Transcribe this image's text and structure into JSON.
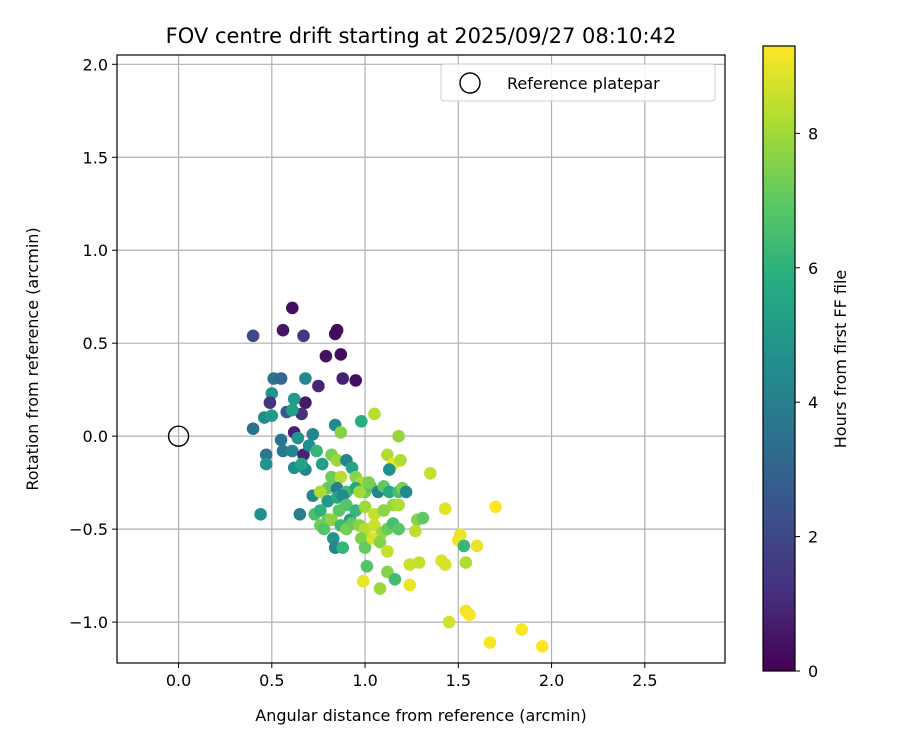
{
  "chart_data": {
    "type": "scatter",
    "title": "FOV centre drift starting at 2025/09/27 08:10:42",
    "xlabel": "Angular distance from reference (arcmin)",
    "ylabel": "Rotation from reference (arcmin)",
    "xlim": [
      -0.33,
      2.93
    ],
    "ylim": [
      -1.22,
      2.05
    ],
    "xticks": [
      0.0,
      0.5,
      1.0,
      1.5,
      2.0,
      2.5
    ],
    "xtick_labels": [
      "0.0",
      "0.5",
      "1.0",
      "1.5",
      "2.0",
      "2.5"
    ],
    "yticks": [
      -1.0,
      -0.5,
      0.0,
      0.5,
      1.0,
      1.5,
      2.0
    ],
    "ytick_labels": [
      "−1.0",
      "−0.5",
      "0.0",
      "0.5",
      "1.0",
      "1.5",
      "2.0"
    ],
    "grid": true,
    "legend": {
      "position": "top-right",
      "entries": [
        "Reference platepar"
      ]
    },
    "reference_point": {
      "name": "Reference platepar",
      "x": 0.0,
      "y": 0.0
    },
    "colorbar": {
      "label": "Hours from first FF file",
      "colormap": "viridis",
      "range": [
        0,
        9.3
      ],
      "ticks": [
        0,
        2,
        4,
        6,
        8
      ],
      "tick_labels": [
        "0",
        "2",
        "4",
        "6",
        "8"
      ]
    },
    "series": [
      {
        "name": "FOV centre drift",
        "points": [
          {
            "x": 0.61,
            "y": 0.69,
            "h": 0.3
          },
          {
            "x": 0.56,
            "y": 0.57,
            "h": 0.5
          },
          {
            "x": 0.67,
            "y": 0.54,
            "h": 1.5
          },
          {
            "x": 0.4,
            "y": 0.54,
            "h": 2.0
          },
          {
            "x": 0.84,
            "y": 0.55,
            "h": 0.3
          },
          {
            "x": 0.85,
            "y": 0.57,
            "h": 0.2
          },
          {
            "x": 0.79,
            "y": 0.43,
            "h": 0.4
          },
          {
            "x": 0.87,
            "y": 0.44,
            "h": 0.3
          },
          {
            "x": 0.75,
            "y": 0.27,
            "h": 0.9
          },
          {
            "x": 0.88,
            "y": 0.31,
            "h": 0.8
          },
          {
            "x": 0.95,
            "y": 0.3,
            "h": 0.3
          },
          {
            "x": 0.51,
            "y": 0.31,
            "h": 3.6
          },
          {
            "x": 0.55,
            "y": 0.31,
            "h": 3.2
          },
          {
            "x": 0.68,
            "y": 0.31,
            "h": 4.3
          },
          {
            "x": 0.5,
            "y": 0.23,
            "h": 4.8
          },
          {
            "x": 0.49,
            "y": 0.18,
            "h": 1.3
          },
          {
            "x": 0.68,
            "y": 0.18,
            "h": 0.6
          },
          {
            "x": 0.58,
            "y": 0.13,
            "h": 2.6
          },
          {
            "x": 0.62,
            "y": 0.2,
            "h": 5.0
          },
          {
            "x": 0.66,
            "y": 0.12,
            "h": 1.2
          },
          {
            "x": 0.61,
            "y": 0.14,
            "h": 5.2
          },
          {
            "x": 0.46,
            "y": 0.1,
            "h": 4.5
          },
          {
            "x": 0.5,
            "y": 0.11,
            "h": 5.0
          },
          {
            "x": 0.4,
            "y": 0.04,
            "h": 3.5
          },
          {
            "x": 0.62,
            "y": 0.02,
            "h": 0.8
          },
          {
            "x": 0.55,
            "y": -0.02,
            "h": 3.6
          },
          {
            "x": 0.64,
            "y": -0.01,
            "h": 4.8
          },
          {
            "x": 0.72,
            "y": 0.01,
            "h": 4.2
          },
          {
            "x": 0.47,
            "y": -0.1,
            "h": 3.7
          },
          {
            "x": 0.56,
            "y": -0.08,
            "h": 3.9
          },
          {
            "x": 0.61,
            "y": -0.08,
            "h": 4.2
          },
          {
            "x": 0.67,
            "y": -0.1,
            "h": 0.9
          },
          {
            "x": 0.7,
            "y": -0.05,
            "h": 4.6
          },
          {
            "x": 0.47,
            "y": -0.15,
            "h": 4.8
          },
          {
            "x": 0.62,
            "y": -0.17,
            "h": 4.6
          },
          {
            "x": 0.68,
            "y": -0.18,
            "h": 4.3
          },
          {
            "x": 0.66,
            "y": -0.15,
            "h": 5.4
          },
          {
            "x": 0.74,
            "y": -0.08,
            "h": 6.2
          },
          {
            "x": 0.77,
            "y": -0.15,
            "h": 5.2
          },
          {
            "x": 0.84,
            "y": 0.06,
            "h": 4.4
          },
          {
            "x": 0.87,
            "y": 0.02,
            "h": 7.6
          },
          {
            "x": 0.98,
            "y": 0.08,
            "h": 5.8
          },
          {
            "x": 1.05,
            "y": 0.12,
            "h": 8.3
          },
          {
            "x": 1.18,
            "y": 0.0,
            "h": 7.8
          },
          {
            "x": 0.44,
            "y": -0.42,
            "h": 4.6
          },
          {
            "x": 0.65,
            "y": -0.42,
            "h": 4.0
          },
          {
            "x": 0.72,
            "y": -0.32,
            "h": 4.4
          },
          {
            "x": 0.76,
            "y": -0.3,
            "h": 5.2
          },
          {
            "x": 0.82,
            "y": -0.1,
            "h": 7.4
          },
          {
            "x": 0.85,
            "y": -0.13,
            "h": 7.9
          },
          {
            "x": 0.9,
            "y": -0.13,
            "h": 4.2
          },
          {
            "x": 0.93,
            "y": -0.17,
            "h": 5.4
          },
          {
            "x": 0.82,
            "y": -0.22,
            "h": 7.2
          },
          {
            "x": 0.87,
            "y": -0.22,
            "h": 8.3
          },
          {
            "x": 0.95,
            "y": -0.22,
            "h": 7.6
          },
          {
            "x": 0.98,
            "y": -0.25,
            "h": 8.2
          },
          {
            "x": 0.8,
            "y": -0.28,
            "h": 7.0
          },
          {
            "x": 0.85,
            "y": -0.28,
            "h": 4.0
          },
          {
            "x": 0.9,
            "y": -0.3,
            "h": 6.4
          },
          {
            "x": 0.95,
            "y": -0.28,
            "h": 5.6
          },
          {
            "x": 1.0,
            "y": -0.3,
            "h": 7.3
          },
          {
            "x": 1.03,
            "y": -0.27,
            "h": 6.8
          },
          {
            "x": 1.07,
            "y": -0.3,
            "h": 4.2
          },
          {
            "x": 1.1,
            "y": -0.27,
            "h": 7.0
          },
          {
            "x": 1.13,
            "y": -0.3,
            "h": 5.6
          },
          {
            "x": 1.18,
            "y": -0.3,
            "h": 6.6
          },
          {
            "x": 1.2,
            "y": -0.28,
            "h": 7.4
          },
          {
            "x": 1.22,
            "y": -0.3,
            "h": 4.4
          },
          {
            "x": 0.76,
            "y": -0.3,
            "h": 8.2
          },
          {
            "x": 0.8,
            "y": -0.35,
            "h": 5.0
          },
          {
            "x": 0.85,
            "y": -0.33,
            "h": 5.6
          },
          {
            "x": 0.88,
            "y": -0.32,
            "h": 4.5
          },
          {
            "x": 0.9,
            "y": -0.37,
            "h": 6.8
          },
          {
            "x": 0.73,
            "y": -0.42,
            "h": 6.6
          },
          {
            "x": 0.76,
            "y": -0.4,
            "h": 6.0
          },
          {
            "x": 0.8,
            "y": -0.45,
            "h": 7.1
          },
          {
            "x": 0.86,
            "y": -0.4,
            "h": 6.9
          },
          {
            "x": 0.92,
            "y": -0.45,
            "h": 5.2
          },
          {
            "x": 0.95,
            "y": -0.4,
            "h": 6.2
          },
          {
            "x": 1.0,
            "y": -0.38,
            "h": 8.0
          },
          {
            "x": 1.05,
            "y": -0.42,
            "h": 8.5
          },
          {
            "x": 1.1,
            "y": -0.4,
            "h": 7.7
          },
          {
            "x": 1.15,
            "y": -0.37,
            "h": 7.9
          },
          {
            "x": 1.18,
            "y": -0.37,
            "h": 8.2
          },
          {
            "x": 0.76,
            "y": -0.48,
            "h": 7.2
          },
          {
            "x": 0.78,
            "y": -0.5,
            "h": 6.8
          },
          {
            "x": 0.82,
            "y": -0.45,
            "h": 7.7
          },
          {
            "x": 0.87,
            "y": -0.48,
            "h": 6.3
          },
          {
            "x": 0.9,
            "y": -0.5,
            "h": 7.3
          },
          {
            "x": 0.93,
            "y": -0.47,
            "h": 7.1
          },
          {
            "x": 0.97,
            "y": -0.48,
            "h": 7.7
          },
          {
            "x": 1.0,
            "y": -0.5,
            "h": 8.3
          },
          {
            "x": 1.05,
            "y": -0.48,
            "h": 8.6
          },
          {
            "x": 1.09,
            "y": -0.52,
            "h": 7.9
          },
          {
            "x": 1.12,
            "y": -0.5,
            "h": 7.2
          },
          {
            "x": 1.15,
            "y": -0.47,
            "h": 6.5
          },
          {
            "x": 1.18,
            "y": -0.5,
            "h": 6.9
          },
          {
            "x": 0.83,
            "y": -0.55,
            "h": 4.8
          },
          {
            "x": 0.84,
            "y": -0.6,
            "h": 4.2
          },
          {
            "x": 0.88,
            "y": -0.6,
            "h": 6.1
          },
          {
            "x": 0.98,
            "y": -0.55,
            "h": 7.5
          },
          {
            "x": 1.0,
            "y": -0.6,
            "h": 7.1
          },
          {
            "x": 1.04,
            "y": -0.55,
            "h": 8.8
          },
          {
            "x": 1.08,
            "y": -0.57,
            "h": 7.6
          },
          {
            "x": 1.12,
            "y": -0.62,
            "h": 8.5
          },
          {
            "x": 1.01,
            "y": -0.7,
            "h": 6.8
          },
          {
            "x": 0.99,
            "y": -0.78,
            "h": 9.0
          },
          {
            "x": 1.08,
            "y": -0.82,
            "h": 7.9
          },
          {
            "x": 1.12,
            "y": -0.73,
            "h": 7.6
          },
          {
            "x": 1.16,
            "y": -0.77,
            "h": 6.4
          },
          {
            "x": 1.24,
            "y": -0.69,
            "h": 8.6
          },
          {
            "x": 1.24,
            "y": -0.8,
            "h": 9.0
          },
          {
            "x": 1.29,
            "y": -0.68,
            "h": 8.5
          },
          {
            "x": 1.28,
            "y": -0.45,
            "h": 7.6
          },
          {
            "x": 1.31,
            "y": -0.44,
            "h": 7.0
          },
          {
            "x": 1.27,
            "y": -0.51,
            "h": 8.4
          },
          {
            "x": 1.35,
            "y": -0.2,
            "h": 8.5
          },
          {
            "x": 1.43,
            "y": -0.39,
            "h": 8.9
          },
          {
            "x": 1.41,
            "y": -0.67,
            "h": 8.9
          },
          {
            "x": 1.43,
            "y": -0.69,
            "h": 8.8
          },
          {
            "x": 1.45,
            "y": -1.0,
            "h": 8.7
          },
          {
            "x": 1.5,
            "y": -0.56,
            "h": 9.1
          },
          {
            "x": 1.51,
            "y": -0.53,
            "h": 9.0
          },
          {
            "x": 1.53,
            "y": -0.59,
            "h": 6.2
          },
          {
            "x": 1.54,
            "y": -0.68,
            "h": 8.2
          },
          {
            "x": 1.54,
            "y": -0.94,
            "h": 9.1
          },
          {
            "x": 1.56,
            "y": -0.96,
            "h": 9.2
          },
          {
            "x": 1.6,
            "y": -0.59,
            "h": 9.0
          },
          {
            "x": 1.67,
            "y": -1.11,
            "h": 9.2
          },
          {
            "x": 1.7,
            "y": -0.38,
            "h": 9.3
          },
          {
            "x": 1.84,
            "y": -1.04,
            "h": 9.2
          },
          {
            "x": 1.95,
            "y": -1.13,
            "h": 9.3
          },
          {
            "x": 1.12,
            "y": -0.1,
            "h": 8.2
          },
          {
            "x": 1.15,
            "y": -0.15,
            "h": 9.0
          },
          {
            "x": 1.19,
            "y": -0.13,
            "h": 8.2
          },
          {
            "x": 1.13,
            "y": -0.18,
            "h": 4.6
          },
          {
            "x": 1.02,
            "y": -0.25,
            "h": 7.4
          },
          {
            "x": 0.97,
            "y": -0.3,
            "h": 8.0
          }
        ]
      }
    ]
  }
}
